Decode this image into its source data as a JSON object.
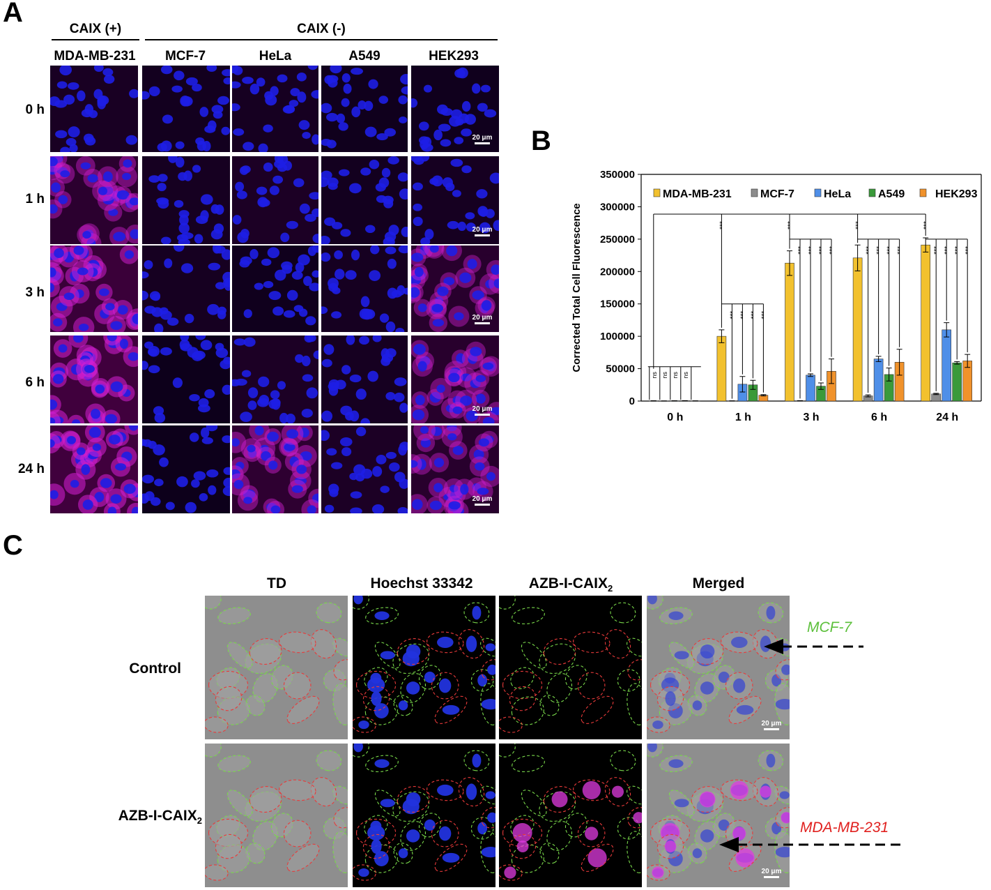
{
  "panelA": {
    "letter": "A",
    "group_pos": "CAIX (+)",
    "group_neg": "CAIX (-)",
    "cell_lines": [
      "MDA-MB-231",
      "MCF-7",
      "HeLa",
      "A549",
      "HEK293"
    ],
    "timepoints": [
      "0 h",
      "1 h",
      "3 h",
      "6 h",
      "24 h"
    ],
    "scale_bar": "20 μm",
    "colors": {
      "nucleus": "#1e1ee6",
      "probe": "#d21ed2",
      "background": "#050010"
    }
  },
  "panelB": {
    "letter": "B",
    "chart_data": {
      "type": "bar",
      "ylabel": "Corrected Total Cell Fluorescence",
      "xlabel": "",
      "categories": [
        "0 h",
        "1 h",
        "3 h",
        "6 h",
        "24 h"
      ],
      "ylim": [
        0,
        350000
      ],
      "yticks": [
        0,
        50000,
        100000,
        150000,
        200000,
        250000,
        300000,
        350000
      ],
      "series": [
        {
          "name": "MDA-MB-231",
          "color": "#f2c12e",
          "values": [
            300,
            100000,
            213000,
            221000,
            241000
          ],
          "errors": [
            200,
            10000,
            19000,
            20000,
            11000
          ]
        },
        {
          "name": "MCF-7",
          "color": "#8c8c8c",
          "values": [
            200,
            300,
            500,
            8000,
            11000
          ],
          "errors": [
            100,
            100,
            200,
            1500,
            1000
          ]
        },
        {
          "name": "HeLa",
          "color": "#4f8fe8",
          "values": [
            400,
            26000,
            40000,
            65000,
            110000
          ],
          "errors": [
            200,
            12000,
            2000,
            4000,
            11000
          ]
        },
        {
          "name": "A549",
          "color": "#3a9a3a",
          "values": [
            500,
            25000,
            23000,
            41000,
            59000
          ],
          "errors": [
            200,
            7000,
            5000,
            10000,
            2000
          ]
        },
        {
          "name": "HEK293",
          "color": "#f0922b",
          "values": [
            300,
            9000,
            46000,
            60000,
            62000
          ],
          "errors": [
            100,
            1000,
            19000,
            20000,
            10000
          ]
        }
      ],
      "legend": "top",
      "sig_ns": "ns",
      "sig_star": "***"
    }
  },
  "panelC": {
    "letter": "C",
    "columns": [
      "TD",
      "Hoechst 33342",
      "AZB-I-CAIX",
      "Merged"
    ],
    "sub2": "2",
    "rows": [
      "Control",
      "AZB-I-CAIX"
    ],
    "arrow_top": "MCF-7",
    "arrow_bottom": "MDA-MB-231",
    "scale_bar": "20 μm",
    "colors": {
      "mcf7_outline": "#79d84a",
      "mda_outline": "#e83a3a",
      "td_bg": "#8e8e8e"
    }
  }
}
